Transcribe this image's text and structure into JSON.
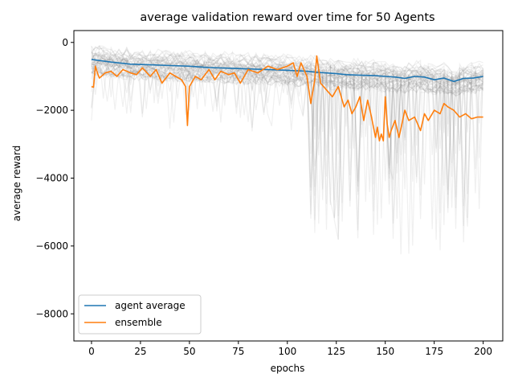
{
  "chart_data": {
    "type": "line",
    "title": "average validation reward over time for 50 Agents",
    "xlabel": "epochs",
    "ylabel": "average reward",
    "xlim": [
      -9,
      210
    ],
    "ylim": [
      -8800,
      350
    ],
    "xticks": [
      0,
      25,
      50,
      75,
      100,
      125,
      150,
      175,
      200
    ],
    "yticks": [
      0,
      -2000,
      -4000,
      -6000,
      -8000
    ],
    "ytick_labels": [
      "0",
      "−2000",
      "−4000",
      "−6000",
      "−8000"
    ],
    "grid": false,
    "legend": {
      "position": "lower-left",
      "entries": [
        {
          "label": "agent average",
          "color": "#1f77b4"
        },
        {
          "label": "ensemble",
          "color": "#ff7f0e"
        }
      ]
    },
    "background_agents": {
      "count": 50,
      "color": "#808080",
      "opacity": 0.12
    },
    "series": [
      {
        "name": "agent average",
        "color": "#1f77b4",
        "x": [
          0,
          10,
          20,
          30,
          40,
          50,
          60,
          70,
          80,
          90,
          100,
          110,
          115,
          120,
          125,
          130,
          135,
          140,
          145,
          150,
          155,
          160,
          165,
          170,
          175,
          180,
          185,
          190,
          195,
          200
        ],
        "y": [
          -500,
          -580,
          -640,
          -660,
          -680,
          -700,
          -740,
          -760,
          -780,
          -800,
          -820,
          -850,
          -880,
          -900,
          -920,
          -950,
          -960,
          -970,
          -980,
          -1000,
          -1020,
          -1060,
          -1000,
          -1020,
          -1100,
          -1050,
          -1150,
          -1060,
          -1050,
          -1000
        ]
      },
      {
        "name": "ensemble",
        "color": "#ff7f0e",
        "x": [
          0,
          1,
          2,
          3,
          4,
          5,
          7,
          10,
          13,
          16,
          20,
          23,
          26,
          30,
          33,
          36,
          40,
          43,
          46,
          48,
          49,
          50,
          53,
          56,
          60,
          63,
          66,
          70,
          73,
          76,
          80,
          85,
          90,
          95,
          100,
          103,
          105,
          107,
          110,
          112,
          114,
          115,
          117,
          120,
          123,
          126,
          129,
          131,
          133,
          135,
          137,
          139,
          141,
          143,
          145,
          146,
          147,
          148,
          149,
          150,
          151,
          152,
          153,
          155,
          157,
          160,
          162,
          165,
          168,
          170,
          172,
          175,
          178,
          180,
          182,
          185,
          188,
          191,
          194,
          197,
          200
        ],
        "y": [
          -1300,
          -1320,
          -700,
          -900,
          -1050,
          -1000,
          -900,
          -850,
          -1000,
          -800,
          -900,
          -950,
          -750,
          -1000,
          -800,
          -1200,
          -900,
          -1000,
          -1100,
          -1300,
          -2450,
          -1300,
          -1000,
          -1100,
          -800,
          -1100,
          -850,
          -950,
          -900,
          -1200,
          -800,
          -900,
          -700,
          -800,
          -700,
          -600,
          -1000,
          -600,
          -1000,
          -1800,
          -1100,
          -400,
          -1200,
          -1400,
          -1600,
          -1300,
          -1900,
          -1700,
          -2100,
          -1900,
          -1600,
          -2300,
          -1700,
          -2200,
          -2800,
          -2500,
          -2900,
          -2700,
          -2900,
          -1600,
          -2400,
          -2800,
          -2600,
          -2300,
          -2800,
          -2000,
          -2300,
          -2200,
          -2600,
          -2100,
          -2300,
          -2000,
          -2100,
          -1800,
          -1900,
          -2000,
          -2200,
          -2100,
          -2250,
          -2200,
          -2200
        ]
      }
    ]
  }
}
